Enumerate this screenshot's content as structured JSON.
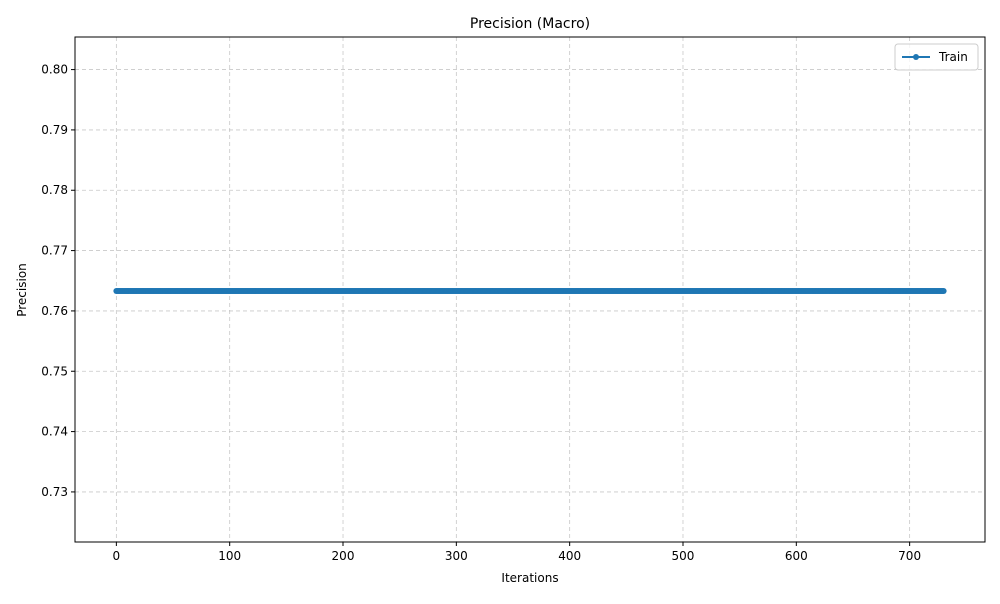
{
  "chart_data": {
    "type": "line",
    "title": "Precision (Macro)",
    "xlabel": "Iterations",
    "ylabel": "Precision",
    "xlim": [
      -36.5,
      766.5
    ],
    "ylim": [
      0.7217,
      0.8054
    ],
    "xticks": [
      0,
      100,
      200,
      300,
      400,
      500,
      600,
      700
    ],
    "xtick_labels": [
      "0",
      "100",
      "200",
      "300",
      "400",
      "500",
      "600",
      "700"
    ],
    "yticks": [
      0.73,
      0.74,
      0.75,
      0.76,
      0.77,
      0.78,
      0.79,
      0.8
    ],
    "ytick_labels": [
      "0.73",
      "0.74",
      "0.75",
      "0.76",
      "0.77",
      "0.78",
      "0.79",
      "0.80"
    ],
    "grid": true,
    "grid_style": "dashed",
    "legend_position": "top-right",
    "series": [
      {
        "name": "Train",
        "color": "#1f77b4",
        "marker": "circle",
        "x_start": 0,
        "x_end": 730,
        "x_step": 1,
        "constant_value": 0.7633
      }
    ]
  }
}
